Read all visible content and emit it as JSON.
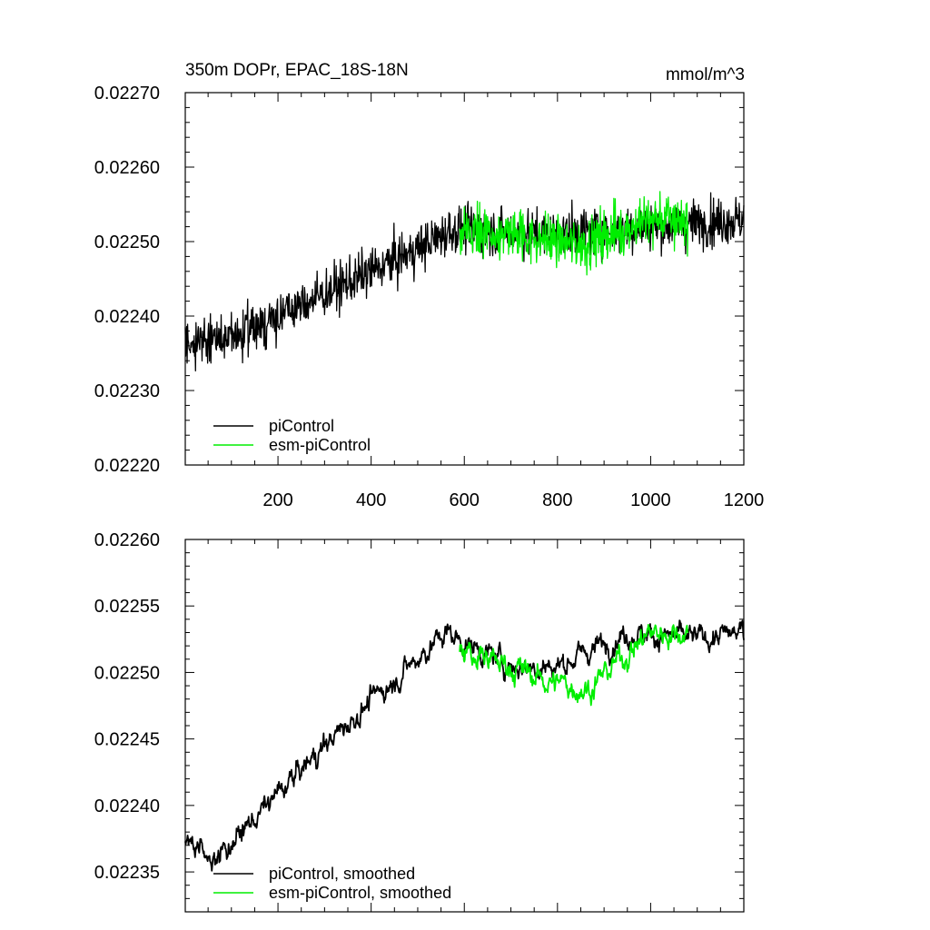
{
  "chart_data": [
    {
      "type": "line",
      "title": "350m DOPr, EPAC_18S-18N",
      "units": "mmol/m^3",
      "xlim": [
        1,
        1200
      ],
      "ylim": [
        0.0222,
        0.0227
      ],
      "x_ticks": [
        200,
        400,
        600,
        800,
        1000,
        1200
      ],
      "x_tick_labels": [
        "200",
        "400",
        "600",
        "800",
        "1000",
        "1200"
      ],
      "y_ticks": [
        0.0222,
        0.0223,
        0.0224,
        0.0225,
        0.0226,
        0.0227
      ],
      "y_tick_labels": [
        "0.02220",
        "0.02230",
        "0.02240",
        "0.02250",
        "0.02260",
        "0.02270"
      ],
      "legend": [
        "piControl",
        "esm-piControl"
      ],
      "legend_position": "bottom-left",
      "series": [
        {
          "name": "piControl",
          "color": "#000000",
          "x_range": [
            1,
            1200
          ],
          "trend": [
            [
              1,
              0.022365
            ],
            [
              100,
              0.02237
            ],
            [
              300,
              0.02243
            ],
            [
              500,
              0.02249
            ],
            [
              570,
              0.022515
            ],
            [
              800,
              0.02251
            ],
            [
              1000,
              0.02252
            ],
            [
              1200,
              0.02253
            ]
          ],
          "noise_amplitude": 4e-05,
          "min": 0.022288,
          "max": 0.022602
        },
        {
          "name": "esm-piControl",
          "color": "#00ee00",
          "x_range": [
            590,
            1080
          ],
          "trend": [
            [
              590,
              0.02251
            ],
            [
              700,
              0.02251
            ],
            [
              850,
              0.022495
            ],
            [
              1000,
              0.02253
            ],
            [
              1080,
              0.02253
            ]
          ],
          "noise_amplitude": 4.5e-05,
          "min": 0.02242,
          "max": 0.02259
        }
      ]
    },
    {
      "type": "line",
      "xlim": [
        1,
        1200
      ],
      "ylim": [
        0.02232,
        0.0226
      ],
      "x_ticks": [
        200,
        400,
        600,
        800,
        1000,
        1200
      ],
      "y_ticks": [
        0.02235,
        0.0224,
        0.02245,
        0.0225,
        0.02255,
        0.0226
      ],
      "y_tick_labels": [
        "0.02235",
        "0.02240",
        "0.02245",
        "0.02250",
        "0.02255",
        "0.02260"
      ],
      "legend": [
        "piControl, smoothed",
        "esm-piControl, smoothed"
      ],
      "legend_position": "bottom-left",
      "series": [
        {
          "name": "piControl, smoothed",
          "color": "#000000",
          "x_range": [
            1,
            1200
          ],
          "trend": [
            [
              1,
              0.022372
            ],
            [
              70,
              0.022362
            ],
            [
              150,
              0.02239
            ],
            [
              300,
              0.022445
            ],
            [
              450,
              0.022495
            ],
            [
              560,
              0.02253
            ],
            [
              700,
              0.022505
            ],
            [
              800,
              0.022505
            ],
            [
              950,
              0.02253
            ],
            [
              1100,
              0.022525
            ],
            [
              1200,
              0.02253
            ]
          ],
          "noise_amplitude": 9e-06,
          "min": 0.02233,
          "max": 0.02256
        },
        {
          "name": "esm-piControl, smoothed",
          "color": "#00ee00",
          "x_range": [
            590,
            1080
          ],
          "trend": [
            [
              590,
              0.022515
            ],
            [
              700,
              0.022505
            ],
            [
              780,
              0.022493
            ],
            [
              870,
              0.022488
            ],
            [
              950,
              0.022515
            ],
            [
              1000,
              0.02253
            ],
            [
              1080,
              0.02253
            ]
          ],
          "noise_amplitude": 1e-05,
          "min": 0.022465,
          "max": 0.022548
        }
      ]
    }
  ]
}
